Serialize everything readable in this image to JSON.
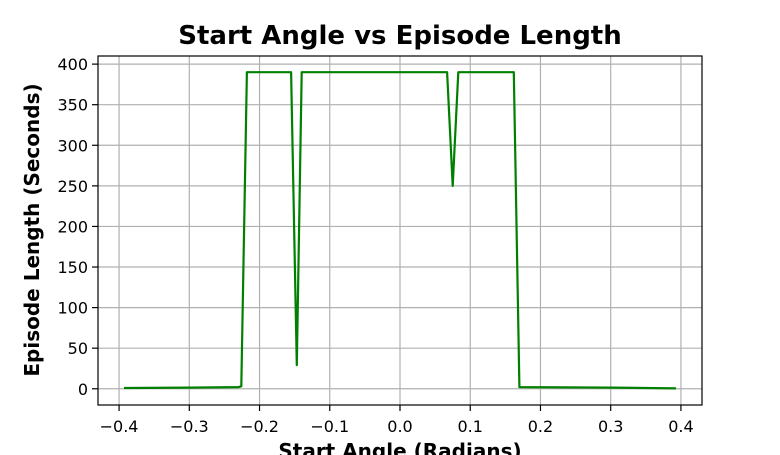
{
  "chart_data": {
    "type": "line",
    "title": "Start Angle vs Episode Length",
    "xlabel": "Start Angle (Radians)",
    "ylabel": "Episode Length (Seconds)",
    "xlim": [
      -0.43,
      0.43
    ],
    "ylim": [
      -20,
      410
    ],
    "grid": true,
    "xticks": [
      -0.4,
      -0.3,
      -0.2,
      -0.1,
      0.0,
      0.1,
      0.2,
      0.3,
      0.4
    ],
    "xtick_labels": [
      "−0.4",
      "−0.3",
      "−0.2",
      "−0.1",
      "0.0",
      "0.1",
      "0.2",
      "0.3",
      "0.4"
    ],
    "yticks": [
      0,
      50,
      100,
      150,
      200,
      250,
      300,
      350,
      400
    ],
    "ytick_labels": [
      "0",
      "50",
      "100",
      "150",
      "200",
      "250",
      "300",
      "350",
      "400"
    ],
    "series": [
      {
        "color": "#008000",
        "x": [
          -0.393,
          -0.3,
          -0.23,
          -0.226,
          -0.218,
          -0.155,
          -0.147,
          -0.14,
          -0.13,
          0.067,
          0.075,
          0.083,
          0.162,
          0.17,
          0.3,
          0.393
        ],
        "y": [
          1,
          1.5,
          2,
          3,
          390,
          390,
          29,
          390,
          390,
          390,
          250,
          390,
          390,
          2,
          1.5,
          0.5
        ]
      }
    ]
  }
}
